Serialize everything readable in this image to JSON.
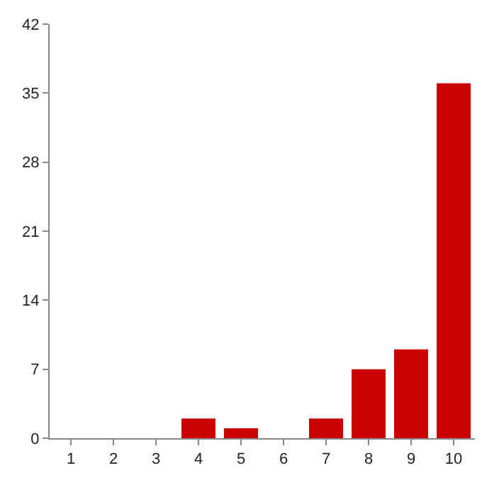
{
  "chart_data": {
    "type": "bar",
    "categories": [
      "1",
      "2",
      "3",
      "4",
      "5",
      "6",
      "7",
      "8",
      "9",
      "10"
    ],
    "values": [
      0,
      0,
      0,
      2,
      1,
      0,
      2,
      7,
      9,
      36
    ],
    "color": "#cc0000",
    "ylim": [
      0,
      42
    ],
    "yticks": [
      0,
      7,
      14,
      21,
      28,
      35,
      42
    ]
  }
}
